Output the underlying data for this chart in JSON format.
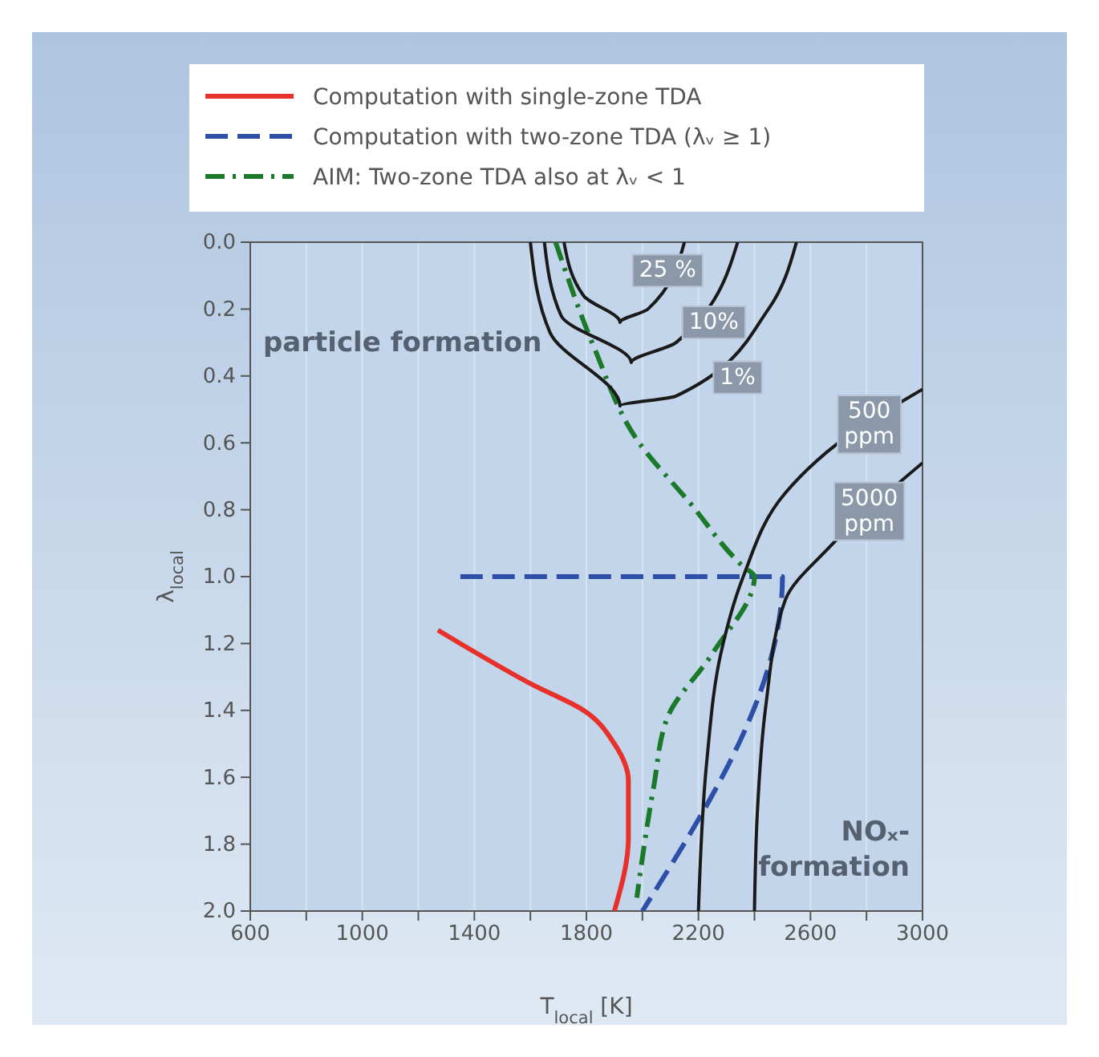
{
  "chart_data": {
    "type": "line",
    "xlabel": "T$_{local}$ [K]",
    "ylabel": "λ$_{local}$",
    "xlim": [
      600,
      3000
    ],
    "ylim": [
      2.0,
      0.0
    ],
    "xticks": [
      600,
      {
        "value": 800,
        "label": null
      },
      1000,
      {
        "value": 1200,
        "label": null
      },
      1400,
      {
        "value": 1600,
        "label": null
      },
      1800,
      {
        "value": 2000,
        "label": null
      },
      2200,
      {
        "value": 2400,
        "label": null
      },
      2600,
      {
        "value": 2800,
        "label": null
      },
      3000
    ],
    "yticks": [
      {
        "value": 0,
        "label": "0.0"
      },
      0.2,
      0.4,
      0.6,
      0.8,
      {
        "value": 1,
        "label": "1.0"
      },
      1.2,
      1.4,
      1.6,
      1.8,
      {
        "value": 2,
        "label": "2.0"
      }
    ],
    "grid": "x",
    "legend": "top",
    "series": [
      {
        "name": "Computation with single-zone TDA",
        "color": "#e8312a",
        "line_style": "solid",
        "x": [
          1270,
          1390,
          1600,
          1790,
          1900,
          1950,
          1950,
          1900
        ],
        "values": [
          1.16,
          1.22,
          1.32,
          1.4,
          1.5,
          1.61,
          1.78,
          2.0
        ]
      },
      {
        "name": "Computation with two-zone TDA (λᵥ ≥ 1)",
        "color": "#2e4fa8",
        "line_style": "dashed",
        "x": [
          1350,
          2500,
          2000
        ],
        "values": [
          1.0,
          1.0,
          2.0
        ]
      },
      {
        "name": "AIM: Two-zone TDA also at λᵥ < 1",
        "color": "#1a7a2a",
        "line_style": "dashdot",
        "x": [
          1690,
          1830,
          1980,
          2170,
          2360,
          2400,
          2250,
          2090,
          2040,
          1980
        ],
        "values": [
          0,
          0.32,
          0.59,
          0.78,
          0.97,
          1.0,
          1.23,
          1.42,
          1.63,
          1.96
        ]
      },
      {
        "color": "#1a1a1a",
        "line_style": "solid",
        "x": [
          1720,
          1790,
          1920,
          2020,
          2150
        ],
        "values": [
          0,
          0.16,
          0.24,
          0.2,
          0
        ]
      },
      {
        "color": "#1a1a1a",
        "line_style": "solid",
        "x": [
          1650,
          1710,
          1960,
          2120,
          2340
        ],
        "values": [
          0,
          0.22,
          0.36,
          0.3,
          0
        ]
      },
      {
        "color": "#1a1a1a",
        "line_style": "solid",
        "x": [
          1600,
          1670,
          1920,
          2120,
          2450,
          2550
        ],
        "values": [
          0,
          0.27,
          0.49,
          0.46,
          0.2,
          0
        ]
      },
      {
        "color": "#1a1a1a",
        "line_style": "solid",
        "x": [
          2200,
          2230,
          2280,
          2360,
          2510,
          2700,
          3000
        ],
        "values": [
          2.0,
          1.55,
          1.23,
          1.0,
          0.75,
          0.6,
          0.44
        ]
      },
      {
        "color": "#1a1a1a",
        "line_style": "solid",
        "x": [
          2400,
          2410,
          2440,
          2510,
          2670,
          3000
        ],
        "values": [
          2.0,
          1.71,
          1.39,
          1.07,
          0.91,
          0.66
        ]
      }
    ],
    "annotations": [
      "particle formation",
      "NOₓ-formation",
      {
        "text": "25 %",
        "x": 2090,
        "y": 0.08
      },
      {
        "text": "10%",
        "x": 2255,
        "y": 0.235
      },
      {
        "text": "1%",
        "x": 2340,
        "y": 0.4
      },
      {
        "text": "500 ppm",
        "x": 2810,
        "y": 0.54
      },
      {
        "text": "5000 ppm",
        "x": 2810,
        "y": 0.8
      }
    ]
  }
}
